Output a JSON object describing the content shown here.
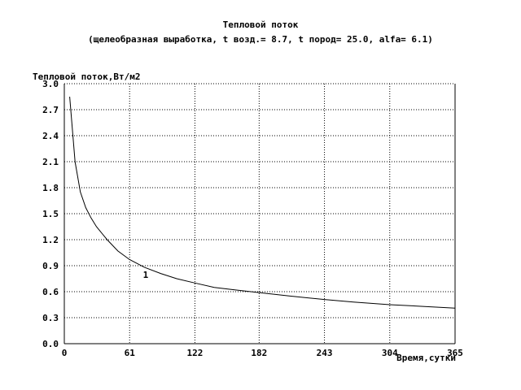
{
  "chart_data": {
    "type": "line",
    "title": "Тепловой поток",
    "subtitle": "(щелеобразная выработка, t возд.=  8.7, t пород= 25.0, alfa=  6.1)",
    "ylabel": "Тепловой поток,Вт/м2",
    "xlabel": "Время,сутки",
    "xlim": [
      0,
      365
    ],
    "ylim": [
      0,
      3.0
    ],
    "x_ticks": [
      "0",
      "61",
      "122",
      "182",
      "243",
      "304",
      "365"
    ],
    "y_ticks": [
      "0.0",
      "0.3",
      "0.6",
      "0.9",
      "1.2",
      "1.5",
      "1.8",
      "2.1",
      "2.4",
      "2.7",
      "3.0"
    ],
    "grid": true,
    "series": [
      {
        "name": "1",
        "x": [
          5,
          10,
          15,
          20,
          25,
          30,
          40,
          50,
          61,
          75,
          90,
          105,
          122,
          140,
          160,
          182,
          210,
          243,
          270,
          304,
          335,
          365
        ],
        "y": [
          2.85,
          2.1,
          1.75,
          1.57,
          1.45,
          1.35,
          1.2,
          1.07,
          0.97,
          0.88,
          0.81,
          0.75,
          0.7,
          0.65,
          0.62,
          0.59,
          0.55,
          0.51,
          0.48,
          0.45,
          0.43,
          0.41
        ]
      }
    ]
  }
}
